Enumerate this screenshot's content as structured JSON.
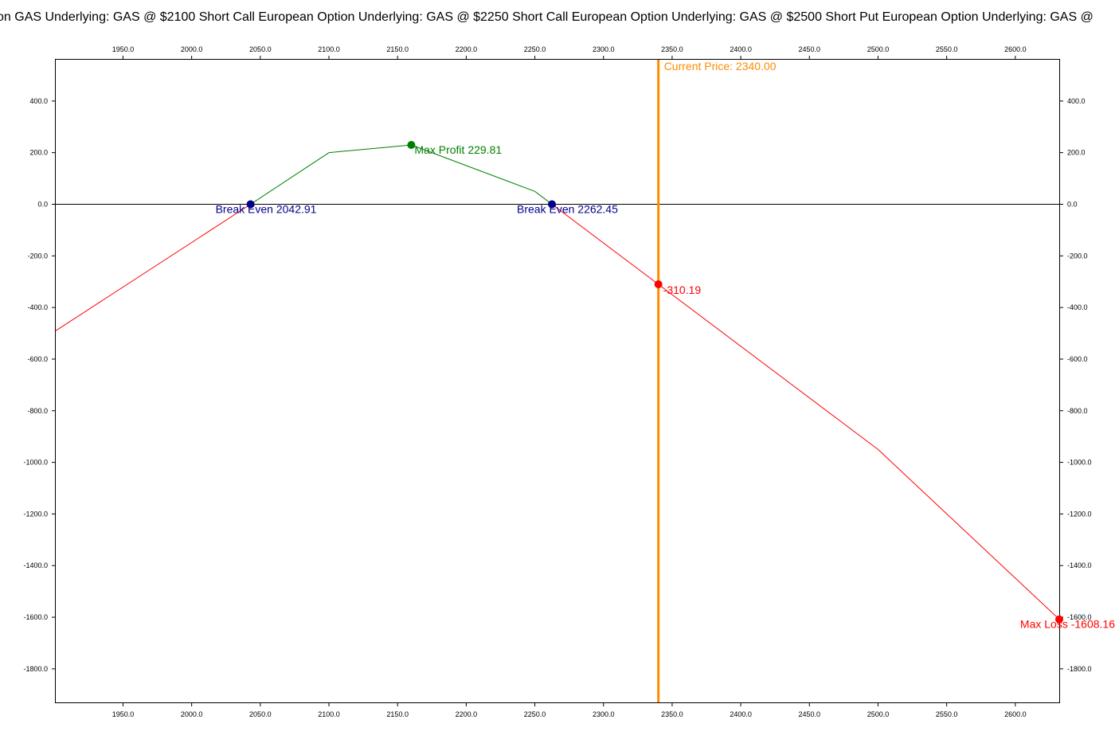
{
  "title": "on GAS  Underlying: GAS @ $2100 Short Call European Option  Underlying: GAS @ $2250 Short Call European Option  Underlying: GAS @ $2500 Short Put European Option  Underlying: GAS @",
  "colors": {
    "profit": "#008000",
    "loss": "#ff0000",
    "break_even": "#00008b",
    "current_price": "#ff8c00",
    "zero_line": "#000000",
    "axis": "#000000"
  },
  "chart_data": {
    "type": "line",
    "xlim": [
      1901,
      2632
    ],
    "ylim": [
      -1930,
      560
    ],
    "x_ticks": [
      1950,
      2000,
      2050,
      2100,
      2150,
      2200,
      2250,
      2300,
      2350,
      2400,
      2450,
      2500,
      2550,
      2600
    ],
    "x_tick_labels": [
      "1950.0",
      "2000.0",
      "2050.0",
      "2100.0",
      "2150.0",
      "2200.0",
      "2250.0",
      "2300.0",
      "2350.0",
      "2400.0",
      "2450.0",
      "2500.0",
      "2550.0",
      "2600.0"
    ],
    "y_ticks": [
      400,
      200,
      0,
      -200,
      -400,
      -600,
      -800,
      -1000,
      -1200,
      -1400,
      -1600,
      -1800
    ],
    "y_tick_labels": [
      "400.0",
      "200.0",
      "0.0",
      "-200.0",
      "-400.0",
      "-600.0",
      "-800.0",
      "-1000.0",
      "-1200.0",
      "-1400.0",
      "-1600.0",
      "-1800.0"
    ],
    "series": [
      {
        "points": [
          [
            1901,
            -490
          ],
          [
            2042.91,
            0
          ],
          [
            2100,
            200
          ],
          [
            2160,
            229.81
          ],
          [
            2250,
            50
          ],
          [
            2262.45,
            0
          ],
          [
            2340,
            -310.19
          ],
          [
            2500,
            -950
          ],
          [
            2632,
            -1608.16
          ]
        ]
      }
    ],
    "current_price": 2340.0,
    "markers": [
      {
        "kind": "break_even",
        "x": 2042.91,
        "y": 0,
        "label": "Break Even 2042.91"
      },
      {
        "kind": "max_profit",
        "x": 2160,
        "y": 229.81,
        "label": "Max Profit 229.81"
      },
      {
        "kind": "break_even",
        "x": 2262.45,
        "y": 0,
        "label": "Break Even 2262.45"
      },
      {
        "kind": "current",
        "x": 2340,
        "y": -310.19,
        "label": "-310.19"
      },
      {
        "kind": "max_loss",
        "x": 2632,
        "y": -1608.16,
        "label": "Max Loss -1608.16"
      }
    ],
    "current_price_label": "Current Price: 2340.00",
    "grid": false,
    "legend": "none"
  }
}
